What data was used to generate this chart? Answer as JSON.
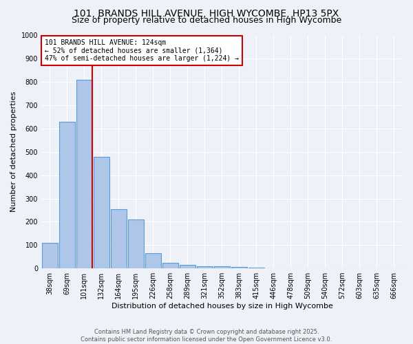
{
  "title1": "101, BRANDS HILL AVENUE, HIGH WYCOMBE, HP13 5PX",
  "title2": "Size of property relative to detached houses in High Wycombe",
  "xlabel": "Distribution of detached houses by size in High Wycombe",
  "ylabel": "Number of detached properties",
  "bar_values": [
    110,
    630,
    810,
    480,
    255,
    210,
    65,
    25,
    15,
    10,
    10,
    5,
    2,
    1,
    1,
    0,
    0,
    0,
    0,
    0,
    0
  ],
  "bin_labels": [
    "38sqm",
    "69sqm",
    "101sqm",
    "132sqm",
    "164sqm",
    "195sqm",
    "226sqm",
    "258sqm",
    "289sqm",
    "321sqm",
    "352sqm",
    "383sqm",
    "415sqm",
    "446sqm",
    "478sqm",
    "509sqm",
    "540sqm",
    "572sqm",
    "603sqm",
    "635sqm",
    "666sqm"
  ],
  "bar_color": "#aec6e8",
  "bar_edge_color": "#5b9bd5",
  "red_line_index": 2,
  "annotation_line1": "101 BRANDS HILL AVENUE: 124sqm",
  "annotation_line2": "← 52% of detached houses are smaller (1,364)",
  "annotation_line3": "47% of semi-detached houses are larger (1,224) →",
  "annotation_box_color": "#ffffff",
  "annotation_border_color": "#cc0000",
  "ylim": [
    0,
    1000
  ],
  "yticks": [
    0,
    100,
    200,
    300,
    400,
    500,
    600,
    700,
    800,
    900,
    1000
  ],
  "background_color": "#eef2f8",
  "grid_color": "#ffffff",
  "footer_line1": "Contains HM Land Registry data © Crown copyright and database right 2025.",
  "footer_line2": "Contains public sector information licensed under the Open Government Licence v3.0.",
  "title_fontsize": 10,
  "subtitle_fontsize": 9,
  "tick_fontsize": 7,
  "ylabel_fontsize": 8,
  "xlabel_fontsize": 8,
  "annotation_fontsize": 7,
  "footer_fontsize": 6
}
